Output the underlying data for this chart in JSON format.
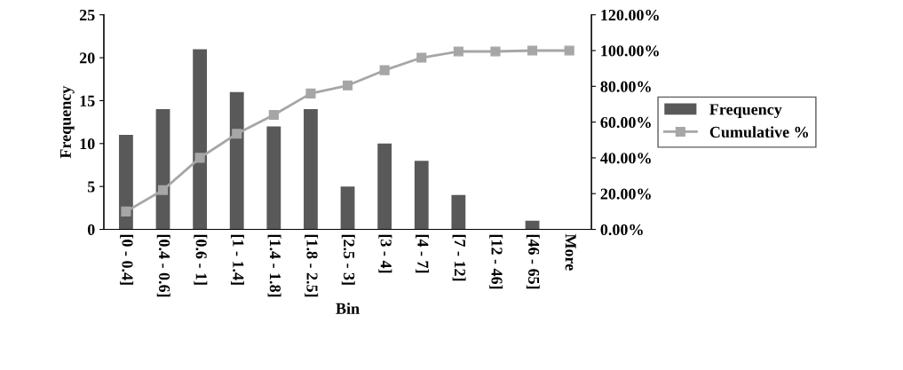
{
  "chart_data": {
    "type": "bar",
    "xlabel": "Bin",
    "ylabel": "Frequency",
    "categories": [
      "[0 - 0.4]",
      "[0.4 - 0.6]",
      "[0.6 - 1]",
      "[1 - 1.4]",
      "[1.4 - 1.8]",
      "[1.8 - 2.5]",
      "[2.5 - 3]",
      "[3 - 4]",
      "[4 - 7]",
      "[7 - 12]",
      "[12 - 46]",
      "[46 - 65]",
      "More"
    ],
    "series": [
      {
        "name": "Frequency",
        "color": "#595959",
        "values": [
          11,
          14,
          21,
          16,
          12,
          14,
          5,
          10,
          8,
          4,
          0,
          1,
          0
        ]
      },
      {
        "name": "Cumulative %",
        "type": "line",
        "axis": "y2",
        "color": "#a6a6a6",
        "values": [
          10,
          22,
          40,
          53.5,
          64,
          76,
          80.5,
          89,
          96,
          99.5,
          99.5,
          100,
          100
        ]
      }
    ],
    "ylim": [
      0,
      25
    ],
    "yticks": [
      0,
      5,
      10,
      15,
      20,
      25
    ],
    "y2lim": [
      0,
      120
    ],
    "y2ticks": [
      {
        "value": 0,
        "label": "0.00%"
      },
      {
        "value": 20,
        "label": "20.00%"
      },
      {
        "value": 40,
        "label": "40.00%"
      },
      {
        "value": 60,
        "label": "60.00%"
      },
      {
        "value": 80,
        "label": "80.00%"
      },
      {
        "value": 100,
        "label": "100.00%"
      },
      {
        "value": 120,
        "label": "120.00%"
      }
    ],
    "grid": false,
    "legend": "right",
    "marker": "square",
    "line_style": "solid"
  }
}
